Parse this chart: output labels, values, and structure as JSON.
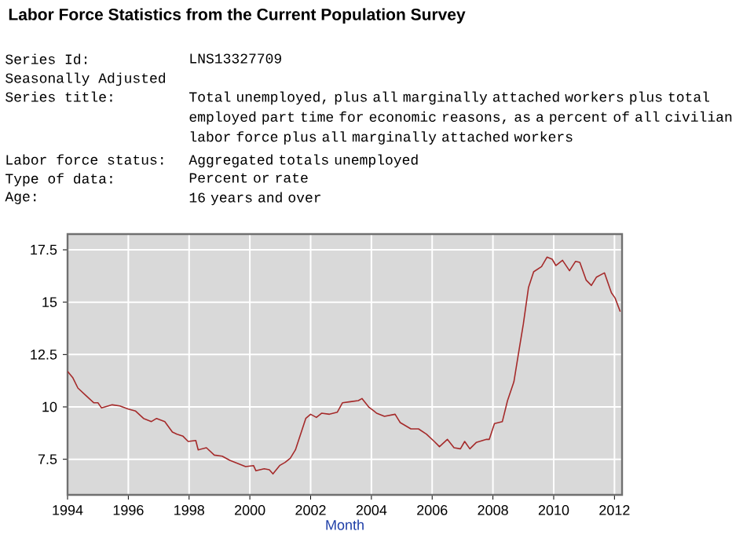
{
  "chart_data": {
    "type": "line",
    "title": "Labor Force Statistics from the Current Population Survey",
    "annotations": [
      "Series Id:",
      "LNS13327709",
      "Seasonally Adjusted",
      "Series title:",
      "Total unemployed, plus all marginally attached workers plus total employed part time for economic reasons, as a percent of all civilian labor force plus all marginally attached workers",
      "Labor force status:",
      "Aggregated totals unemployed",
      "Type of data:",
      "Percent or rate",
      "Age:",
      "16 years and over"
    ],
    "xlabel": "Month",
    "x": [
      1994.0,
      1994.17,
      1994.34,
      1994.6,
      1994.86,
      1995.0,
      1995.12,
      1995.47,
      1995.72,
      1996.0,
      1996.24,
      1996.5,
      1996.76,
      1996.93,
      1997.2,
      1997.45,
      1997.6,
      1997.8,
      1997.97,
      1998.22,
      1998.3,
      1998.57,
      1998.83,
      1999.09,
      1999.34,
      1999.6,
      1999.86,
      2000.12,
      2000.2,
      2000.47,
      2000.64,
      2000.76,
      2000.98,
      2001.16,
      2001.33,
      2001.5,
      2001.67,
      2001.84,
      2002.0,
      2002.19,
      2002.36,
      2002.62,
      2002.88,
      2003.05,
      2003.31,
      2003.57,
      2003.69,
      2003.91,
      2004.09,
      2004.17,
      2004.43,
      2004.78,
      2004.95,
      2005.3,
      2005.55,
      2005.81,
      2006.07,
      2006.24,
      2006.5,
      2006.72,
      2006.93,
      2007.07,
      2007.24,
      2007.45,
      2007.79,
      2007.88,
      2008.05,
      2008.31,
      2008.48,
      2008.69,
      2008.83,
      2009.0,
      2009.17,
      2009.34,
      2009.6,
      2009.78,
      2009.95,
      2010.07,
      2010.29,
      2010.52,
      2010.72,
      2010.86,
      2011.07,
      2011.24,
      2011.41,
      2011.67,
      2011.9,
      2012.02,
      2012.19
    ],
    "series": [
      {
        "color": "#a52a2a",
        "values": [
          11.7,
          11.4,
          10.9,
          10.55,
          10.2,
          10.2,
          9.95,
          10.1,
          10.05,
          9.9,
          9.8,
          9.45,
          9.3,
          9.45,
          9.3,
          8.8,
          8.7,
          8.6,
          8.35,
          8.4,
          7.95,
          8.05,
          7.7,
          7.65,
          7.45,
          7.3,
          7.15,
          7.2,
          6.95,
          7.05,
          7.0,
          6.8,
          7.2,
          7.35,
          7.55,
          7.95,
          8.7,
          9.45,
          9.65,
          9.5,
          9.7,
          9.65,
          9.75,
          10.2,
          10.25,
          10.3,
          10.4,
          10.0,
          9.8,
          9.7,
          9.55,
          9.65,
          9.25,
          8.95,
          8.95,
          8.7,
          8.35,
          8.1,
          8.45,
          8.05,
          8.0,
          8.35,
          8.0,
          8.3,
          8.45,
          8.45,
          9.2,
          9.3,
          10.3,
          11.2,
          12.45,
          13.95,
          15.7,
          16.45,
          16.7,
          17.15,
          17.05,
          16.75,
          17.0,
          16.5,
          16.95,
          16.9,
          16.05,
          15.8,
          16.2,
          16.4,
          15.45,
          15.2,
          14.55
        ]
      }
    ],
    "xlim": [
      1994,
      2012.25
    ],
    "ylim": [
      5.8,
      18.25
    ],
    "xticks": [
      1994,
      1996,
      1998,
      2000,
      2002,
      2004,
      2006,
      2008,
      2010,
      2012
    ],
    "yticks": [
      7.5,
      10,
      12.5,
      15,
      17.5
    ],
    "grid": true
  }
}
